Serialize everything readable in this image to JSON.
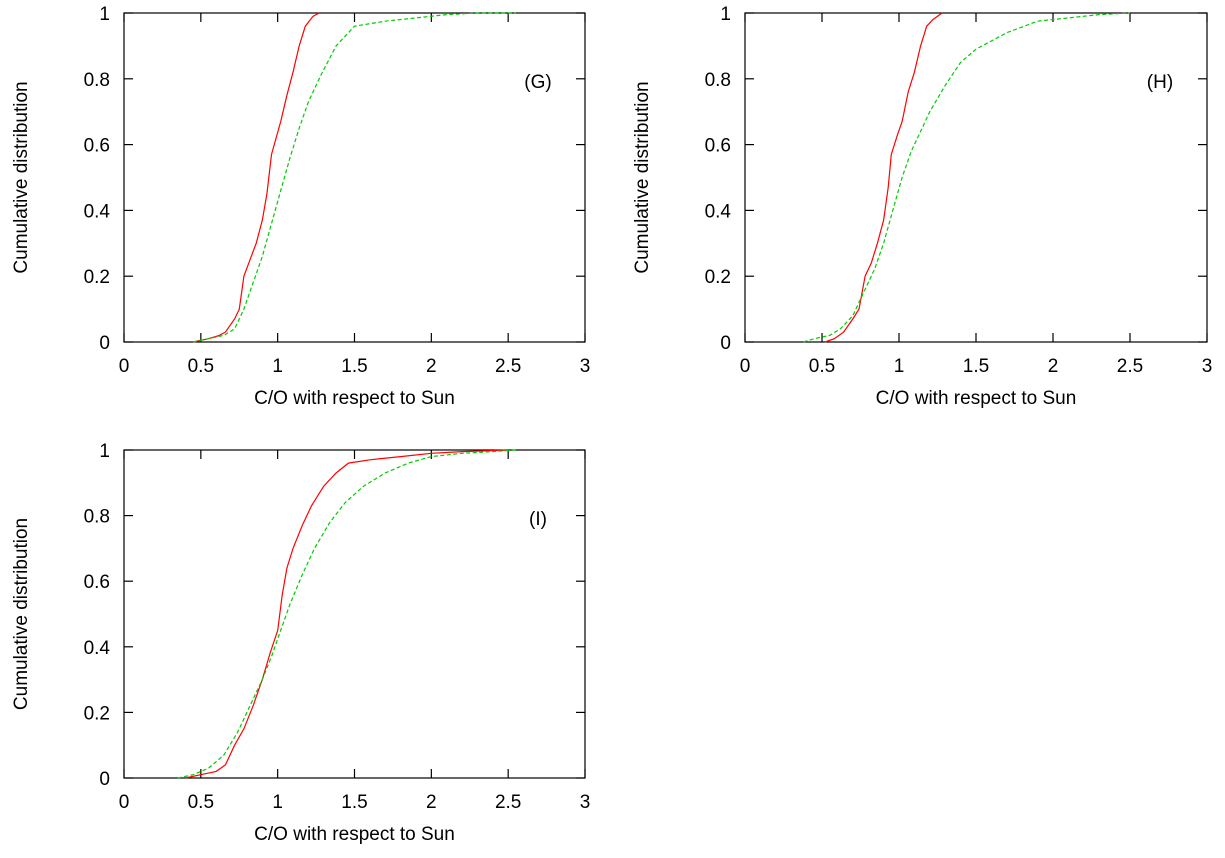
{
  "chart_data": [
    {
      "type": "line",
      "panel_label": "(G)",
      "xlabel": "C/O with respect to Sun",
      "ylabel": "Cumulative distribution",
      "xlim": [
        0,
        3
      ],
      "ylim": [
        0,
        1
      ],
      "xticks": [
        "0",
        "0.5",
        "1",
        "1.5",
        "2",
        "2.5",
        "3"
      ],
      "yticks": [
        "0",
        "0.2",
        "0.4",
        "0.6",
        "0.8",
        "1"
      ],
      "grid": false,
      "series": [
        {
          "color": "#ff0000",
          "style": "solid",
          "points": [
            [
              0.45,
              0
            ],
            [
              0.55,
              0.01
            ],
            [
              0.62,
              0.02
            ],
            [
              0.66,
              0.03
            ],
            [
              0.72,
              0.07
            ],
            [
              0.75,
              0.1
            ],
            [
              0.78,
              0.2
            ],
            [
              0.82,
              0.25
            ],
            [
              0.86,
              0.3
            ],
            [
              0.9,
              0.37
            ],
            [
              0.93,
              0.45
            ],
            [
              0.96,
              0.57
            ],
            [
              0.99,
              0.62
            ],
            [
              1.02,
              0.67
            ],
            [
              1.06,
              0.75
            ],
            [
              1.1,
              0.82
            ],
            [
              1.14,
              0.9
            ],
            [
              1.18,
              0.96
            ],
            [
              1.23,
              0.99
            ],
            [
              1.27,
              1.0
            ]
          ]
        },
        {
          "color": "#00cc00",
          "style": "dashed",
          "points": [
            [
              0.45,
              0
            ],
            [
              0.55,
              0.01
            ],
            [
              0.65,
              0.02
            ],
            [
              0.72,
              0.04
            ],
            [
              0.78,
              0.1
            ],
            [
              0.84,
              0.18
            ],
            [
              0.9,
              0.26
            ],
            [
              0.96,
              0.36
            ],
            [
              1.02,
              0.46
            ],
            [
              1.08,
              0.56
            ],
            [
              1.14,
              0.65
            ],
            [
              1.2,
              0.73
            ],
            [
              1.28,
              0.81
            ],
            [
              1.38,
              0.9
            ],
            [
              1.5,
              0.96
            ],
            [
              1.7,
              0.975
            ],
            [
              1.9,
              0.985
            ],
            [
              2.1,
              0.995
            ],
            [
              2.3,
              1.0
            ],
            [
              2.55,
              1.0
            ]
          ]
        }
      ]
    },
    {
      "type": "line",
      "panel_label": "(H)",
      "xlabel": "C/O with respect to Sun",
      "ylabel": "Cumulative distribution",
      "xlim": [
        0,
        3
      ],
      "ylim": [
        0,
        1
      ],
      "xticks": [
        "0",
        "0.5",
        "1",
        "1.5",
        "2",
        "2.5",
        "3"
      ],
      "yticks": [
        "0",
        "0.2",
        "0.4",
        "0.6",
        "0.8",
        "1"
      ],
      "grid": false,
      "series": [
        {
          "color": "#ff0000",
          "style": "solid",
          "points": [
            [
              0.52,
              0
            ],
            [
              0.58,
              0.01
            ],
            [
              0.64,
              0.03
            ],
            [
              0.7,
              0.07
            ],
            [
              0.74,
              0.1
            ],
            [
              0.78,
              0.2
            ],
            [
              0.82,
              0.24
            ],
            [
              0.86,
              0.3
            ],
            [
              0.9,
              0.37
            ],
            [
              0.93,
              0.47
            ],
            [
              0.95,
              0.57
            ],
            [
              0.99,
              0.63
            ],
            [
              1.02,
              0.67
            ],
            [
              1.06,
              0.76
            ],
            [
              1.1,
              0.82
            ],
            [
              1.14,
              0.9
            ],
            [
              1.18,
              0.96
            ],
            [
              1.22,
              0.98
            ],
            [
              1.28,
              1.0
            ]
          ]
        },
        {
          "color": "#00cc00",
          "style": "dashed",
          "points": [
            [
              0.38,
              0
            ],
            [
              0.45,
              0.01
            ],
            [
              0.55,
              0.02
            ],
            [
              0.62,
              0.04
            ],
            [
              0.7,
              0.08
            ],
            [
              0.78,
              0.16
            ],
            [
              0.84,
              0.22
            ],
            [
              0.9,
              0.3
            ],
            [
              0.96,
              0.4
            ],
            [
              1.02,
              0.5
            ],
            [
              1.08,
              0.58
            ],
            [
              1.14,
              0.64
            ],
            [
              1.2,
              0.7
            ],
            [
              1.3,
              0.78
            ],
            [
              1.4,
              0.85
            ],
            [
              1.5,
              0.89
            ],
            [
              1.7,
              0.94
            ],
            [
              1.9,
              0.975
            ],
            [
              2.1,
              0.985
            ],
            [
              2.3,
              0.995
            ],
            [
              2.5,
              1.0
            ]
          ]
        }
      ]
    },
    {
      "type": "line",
      "panel_label": "(I)",
      "xlabel": "C/O with respect to Sun",
      "ylabel": "Cumulative distribution",
      "xlim": [
        0,
        3
      ],
      "ylim": [
        0,
        1
      ],
      "xticks": [
        "0",
        "0.5",
        "1",
        "1.5",
        "2",
        "2.5",
        "3"
      ],
      "yticks": [
        "0",
        "0.2",
        "0.4",
        "0.6",
        "0.8",
        "1"
      ],
      "grid": false,
      "series": [
        {
          "color": "#ff0000",
          "style": "solid",
          "points": [
            [
              0.4,
              0
            ],
            [
              0.5,
              0.01
            ],
            [
              0.6,
              0.02
            ],
            [
              0.66,
              0.04
            ],
            [
              0.72,
              0.1
            ],
            [
              0.78,
              0.15
            ],
            [
              0.84,
              0.22
            ],
            [
              0.9,
              0.3
            ],
            [
              0.95,
              0.38
            ],
            [
              1.0,
              0.45
            ],
            [
              1.03,
              0.56
            ],
            [
              1.06,
              0.64
            ],
            [
              1.1,
              0.7
            ],
            [
              1.16,
              0.77
            ],
            [
              1.22,
              0.83
            ],
            [
              1.3,
              0.89
            ],
            [
              1.38,
              0.93
            ],
            [
              1.46,
              0.96
            ],
            [
              1.6,
              0.97
            ],
            [
              1.8,
              0.98
            ],
            [
              2.0,
              0.99
            ],
            [
              2.2,
              0.995
            ],
            [
              2.5,
              1.0
            ]
          ]
        },
        {
          "color": "#00cc00",
          "style": "dashed",
          "points": [
            [
              0.35,
              0
            ],
            [
              0.45,
              0.01
            ],
            [
              0.55,
              0.03
            ],
            [
              0.65,
              0.07
            ],
            [
              0.74,
              0.14
            ],
            [
              0.82,
              0.22
            ],
            [
              0.9,
              0.3
            ],
            [
              0.96,
              0.37
            ],
            [
              1.02,
              0.45
            ],
            [
              1.08,
              0.53
            ],
            [
              1.16,
              0.62
            ],
            [
              1.24,
              0.7
            ],
            [
              1.34,
              0.78
            ],
            [
              1.44,
              0.84
            ],
            [
              1.56,
              0.89
            ],
            [
              1.7,
              0.93
            ],
            [
              1.85,
              0.96
            ],
            [
              2.0,
              0.98
            ],
            [
              2.2,
              0.99
            ],
            [
              2.4,
              0.995
            ],
            [
              2.55,
              1.0
            ]
          ]
        }
      ]
    }
  ]
}
